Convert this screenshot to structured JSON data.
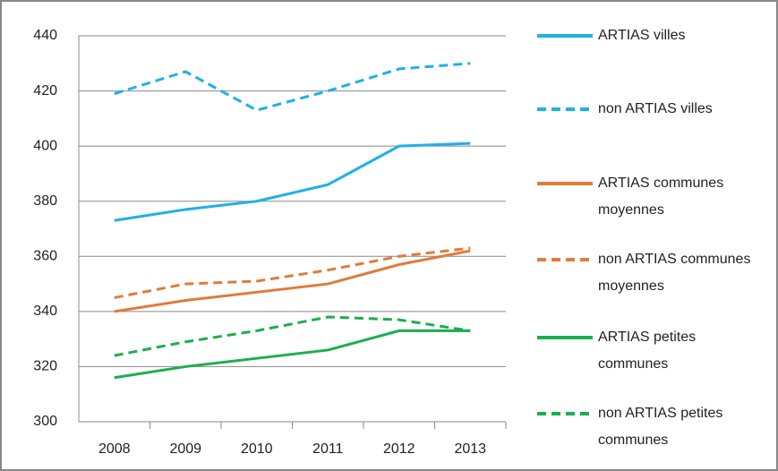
{
  "chart_data": {
    "type": "line",
    "categories": [
      "2008",
      "2009",
      "2010",
      "2011",
      "2012",
      "2013"
    ],
    "ylim": [
      300,
      440
    ],
    "yticks": [
      300,
      320,
      340,
      360,
      380,
      400,
      420,
      440
    ],
    "grid": true,
    "series": [
      {
        "name": "ARTIAS villes",
        "color": "#1fb0e8",
        "dashed": false,
        "values": [
          373,
          377,
          380,
          386,
          400,
          401
        ]
      },
      {
        "name": "non ARTIAS villes",
        "color": "#1fb0e8",
        "dashed": true,
        "values": [
          419,
          427,
          413,
          420,
          428,
          430
        ]
      },
      {
        "name": "ARTIAS communes moyennes",
        "color": "#e07b39",
        "dashed": false,
        "values": [
          340,
          344,
          347,
          350,
          357,
          362
        ]
      },
      {
        "name": "non ARTIAS communes moyennes",
        "color": "#e07b39",
        "dashed": true,
        "values": [
          345,
          350,
          351,
          355,
          360,
          363
        ]
      },
      {
        "name": "ARTIAS petites communes",
        "color": "#1aaf4f",
        "dashed": false,
        "values": [
          316,
          320,
          323,
          326,
          333,
          333
        ]
      },
      {
        "name": "non ARTIAS petites communes",
        "color": "#1aaf4f",
        "dashed": true,
        "values": [
          324,
          329,
          333,
          338,
          337,
          333
        ]
      }
    ]
  }
}
